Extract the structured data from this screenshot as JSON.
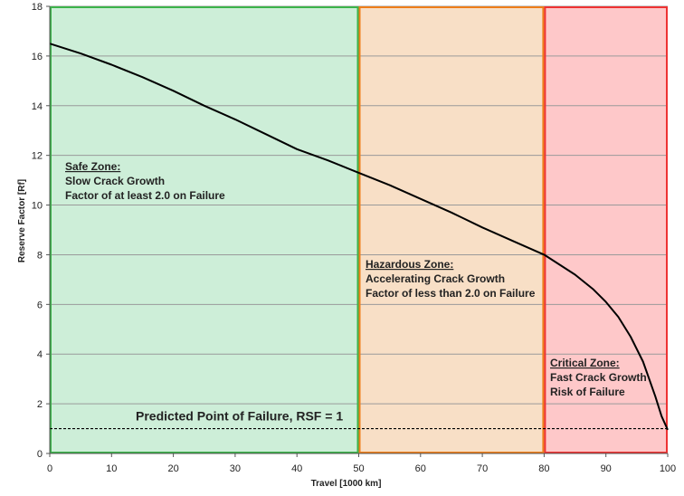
{
  "chart_data": {
    "type": "line",
    "xlabel": "Travel [1000 km]",
    "ylabel": "Reserve Factor [Rf]",
    "xlim": [
      0,
      100
    ],
    "ylim": [
      0,
      18
    ],
    "x_ticks": [
      0,
      10,
      20,
      30,
      40,
      50,
      60,
      70,
      80,
      90,
      100
    ],
    "y_ticks": [
      0,
      2,
      4,
      6,
      8,
      10,
      12,
      14,
      16,
      18
    ],
    "grid": "horizontal",
    "series": [
      {
        "x": [
          0,
          5,
          10,
          15,
          20,
          25,
          30,
          35,
          40,
          45,
          50,
          55,
          60,
          65,
          70,
          75,
          80,
          85,
          88,
          90,
          92,
          94,
          96,
          97,
          98,
          99,
          100
        ],
        "y": [
          16.5,
          16.1,
          15.65,
          15.15,
          14.6,
          14.0,
          13.45,
          12.85,
          12.25,
          11.8,
          11.3,
          10.8,
          10.25,
          9.7,
          9.1,
          8.55,
          8.0,
          7.2,
          6.6,
          6.1,
          5.5,
          4.7,
          3.7,
          3.0,
          2.3,
          1.5,
          0.95
        ],
        "color": "#000000"
      }
    ],
    "zones": [
      {
        "x_range": [
          0,
          50
        ],
        "fill": "#cdeed8",
        "border": "#3cb34a",
        "title": "Safe Zone:",
        "lines": [
          "Slow Crack Growth",
          "Factor of at least 2.0 on Failure"
        ]
      },
      {
        "x_range": [
          50,
          80
        ],
        "fill": "#f8dfc6",
        "border": "#ee7e1a",
        "title": "Hazardous Zone:",
        "lines": [
          "Accelerating Crack Growth",
          "Factor of less than 2.0 on Failure"
        ]
      },
      {
        "x_range": [
          80,
          100
        ],
        "fill": "#fec8c9",
        "border": "#ee3333",
        "title": "Critical Zone:",
        "lines": [
          "Fast Crack Growth",
          "Risk of Failure"
        ]
      }
    ],
    "failure_line": {
      "y": 1,
      "label": "Predicted Point of Failure, RSF = 1"
    }
  }
}
